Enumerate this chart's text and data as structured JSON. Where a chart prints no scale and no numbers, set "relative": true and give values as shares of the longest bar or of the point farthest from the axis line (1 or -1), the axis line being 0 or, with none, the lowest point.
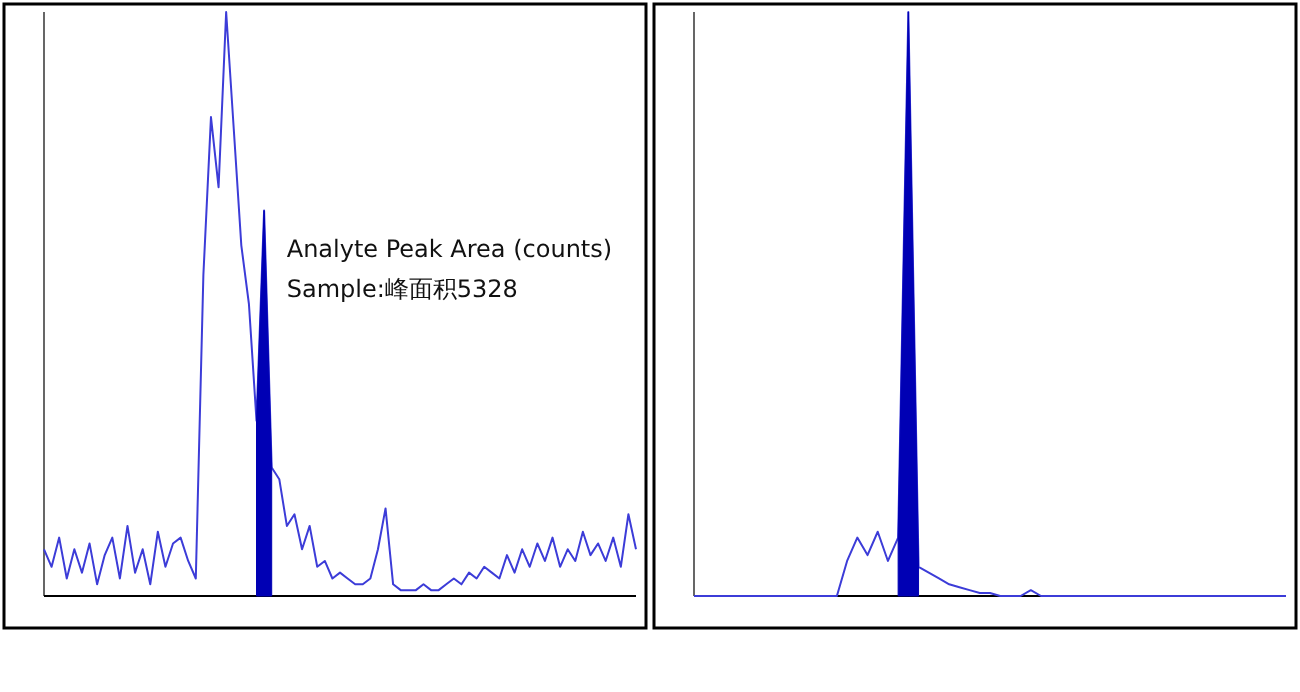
{
  "chart_data": [
    {
      "type": "line",
      "relative": true,
      "categories": [
        null,
        null,
        null,
        null,
        null,
        null,
        null,
        null,
        null,
        null,
        null,
        null,
        null,
        null,
        null,
        null,
        null,
        null,
        null,
        null,
        null,
        null,
        null,
        null,
        null,
        null,
        null,
        null,
        null,
        null,
        null,
        null,
        null,
        null,
        null,
        null,
        null,
        null,
        null,
        null,
        null,
        null,
        null,
        null,
        null,
        null,
        null,
        null,
        null,
        null,
        null,
        null,
        null,
        null,
        null,
        null,
        null,
        null,
        null,
        null,
        null,
        null,
        null,
        null,
        null,
        null,
        null,
        null,
        null,
        null,
        null,
        null,
        null,
        null,
        null,
        null,
        null,
        null,
        null
      ],
      "annotations": [
        "Analyte Peak Area (counts)",
        "Sample:峰面积5328"
      ],
      "series": [
        {
          "color": "#3c3cd8",
          "values": [
            0.08,
            0.05,
            0.1,
            0.03,
            0.08,
            0.04,
            0.09,
            0.02,
            0.07,
            0.1,
            0.03,
            0.12,
            0.04,
            0.08,
            0.02,
            0.11,
            0.05,
            0.09,
            0.1,
            0.06,
            0.03,
            0.55,
            0.82,
            0.7,
            1.0,
            0.8,
            0.6,
            0.5,
            0.3,
            0.66,
            0.22,
            0.2,
            0.12,
            0.14,
            0.08,
            0.12,
            0.05,
            0.06,
            0.03,
            0.04,
            0.03,
            0.02,
            0.02,
            0.03,
            0.08,
            0.15,
            0.02,
            0.01,
            0.01,
            0.01,
            0.02,
            0.01,
            0.01,
            0.02,
            0.03,
            0.02,
            0.04,
            0.03,
            0.05,
            0.04,
            0.03,
            0.07,
            0.04,
            0.08,
            0.05,
            0.09,
            0.06,
            0.1,
            0.05,
            0.08,
            0.06,
            0.11,
            0.07,
            0.09,
            0.06,
            0.1,
            0.05,
            0.14,
            0.08
          ]
        },
        {
          "type": "area",
          "color": "#0000b4",
          "values": [
            null,
            null,
            null,
            null,
            null,
            null,
            null,
            null,
            null,
            null,
            null,
            null,
            null,
            null,
            null,
            null,
            null,
            null,
            null,
            null,
            null,
            null,
            null,
            null,
            null,
            null,
            null,
            null,
            0.3,
            0.66,
            0.22,
            null,
            null,
            null,
            null,
            null,
            null,
            null,
            null,
            null,
            null,
            null,
            null,
            null,
            null,
            null,
            null,
            null,
            null,
            null,
            null,
            null,
            null,
            null,
            null,
            null,
            null,
            null,
            null,
            null,
            null,
            null,
            null,
            null,
            null,
            null,
            null,
            null,
            null,
            null,
            null,
            null,
            null,
            null,
            null,
            null,
            null,
            null,
            null
          ]
        }
      ]
    },
    {
      "type": "line",
      "relative": true,
      "categories": [
        null,
        null,
        null,
        null,
        null,
        null,
        null,
        null,
        null,
        null,
        null,
        null,
        null,
        null,
        null,
        null,
        null,
        null,
        null,
        null,
        null,
        null,
        null,
        null,
        null,
        null,
        null,
        null,
        null,
        null,
        null,
        null,
        null,
        null,
        null,
        null,
        null,
        null,
        null,
        null,
        null,
        null,
        null,
        null,
        null,
        null,
        null,
        null,
        null,
        null,
        null,
        null,
        null,
        null,
        null,
        null,
        null,
        null,
        null
      ],
      "series": [
        {
          "color": "#3c3cd8",
          "values": [
            0,
            0,
            0,
            0,
            0,
            0,
            0,
            0,
            0,
            0,
            0,
            0,
            0,
            0,
            0,
            0.06,
            0.1,
            0.07,
            0.11,
            0.06,
            0.1,
            1.0,
            0.05,
            0.04,
            0.03,
            0.02,
            0.015,
            0.01,
            0.005,
            0.005,
            0,
            0,
            0,
            0.01,
            0,
            0,
            0,
            0,
            0,
            0,
            0,
            0,
            0,
            0,
            0,
            0,
            0,
            0,
            0,
            0,
            0,
            0,
            0,
            0,
            0,
            0,
            0,
            0,
            0
          ]
        },
        {
          "type": "area",
          "color": "#0000b4",
          "values": [
            null,
            null,
            null,
            null,
            null,
            null,
            null,
            null,
            null,
            null,
            null,
            null,
            null,
            null,
            null,
            null,
            null,
            null,
            null,
            null,
            0.1,
            1.0,
            0.05,
            null,
            null,
            null,
            null,
            null,
            null,
            null,
            null,
            null,
            null,
            null,
            null,
            null,
            null,
            null,
            null,
            null,
            null,
            null,
            null,
            null,
            null,
            null,
            null,
            null,
            null,
            null,
            null,
            null,
            null,
            null,
            null,
            null,
            null,
            null,
            null
          ]
        }
      ]
    }
  ]
}
